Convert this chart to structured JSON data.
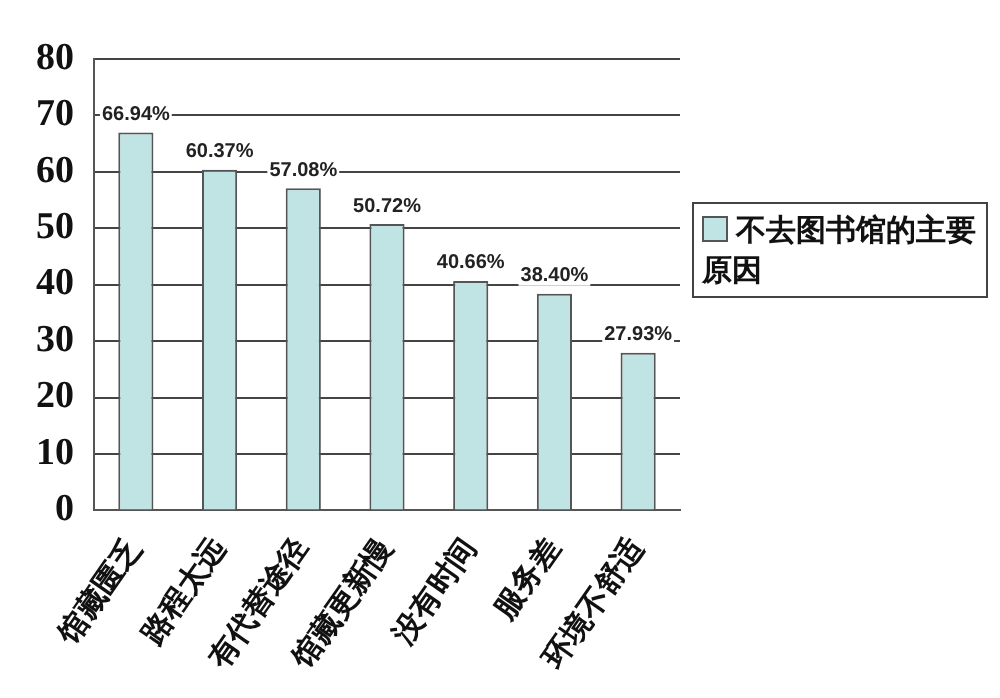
{
  "chart_data": {
    "type": "bar",
    "categories": [
      "馆藏匮乏",
      "路程太远",
      "有代替途径",
      "馆藏更新慢",
      "没有时间",
      "服务差",
      "环境不舒适"
    ],
    "series": [
      {
        "name": "不去图书馆的主要原因",
        "color": "#c0e4e4",
        "values": [
          66.94,
          60.37,
          57.08,
          50.72,
          40.66,
          38.4,
          27.93
        ],
        "value_labels": [
          "66.94%",
          "60.37%",
          "57.08%",
          "50.72%",
          "40.66%",
          "38.40%",
          "27.93%"
        ]
      }
    ],
    "ylim": [
      0,
      80
    ],
    "yticks": [
      0,
      10,
      20,
      30,
      40,
      50,
      60,
      70,
      80
    ],
    "grid": "y",
    "legend": "right"
  }
}
